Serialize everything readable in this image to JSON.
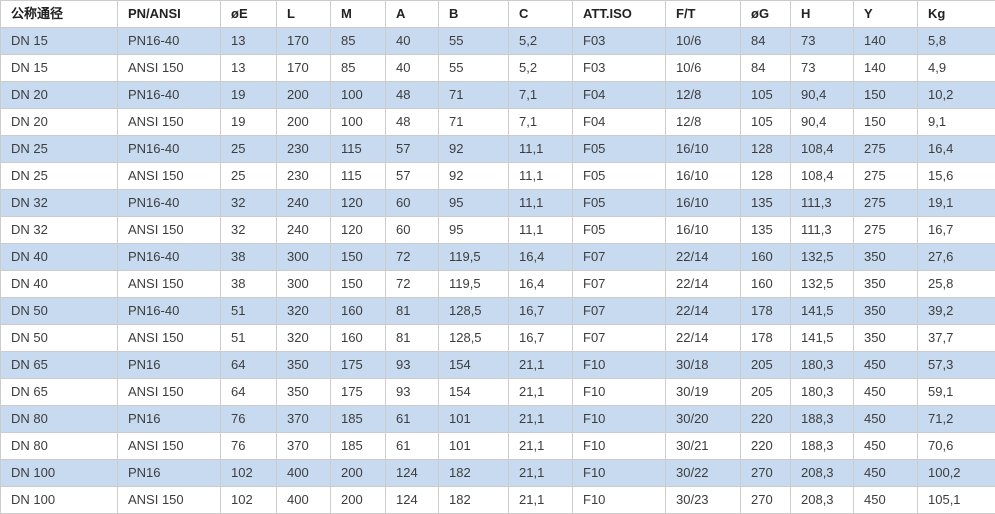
{
  "chart_data": {
    "type": "table",
    "columns": [
      "公称通径",
      "PN/ANSI",
      "øE",
      "L",
      "M",
      "A",
      "B",
      "C",
      "ATT.ISO",
      "F/T",
      "øG",
      "H",
      "Y",
      "Kg"
    ],
    "rows": [
      [
        "DN 15",
        "PN16-40",
        "13",
        "170",
        "85",
        "40",
        "55",
        "5,2",
        "F03",
        "10/6",
        "84",
        "73",
        "140",
        "5,8"
      ],
      [
        "DN 15",
        "ANSI 150",
        "13",
        "170",
        "85",
        "40",
        "55",
        "5,2",
        "F03",
        "10/6",
        "84",
        "73",
        "140",
        "4,9"
      ],
      [
        "DN 20",
        "PN16-40",
        "19",
        "200",
        "100",
        "48",
        "71",
        "7,1",
        "F04",
        "12/8",
        "105",
        "90,4",
        "150",
        "10,2"
      ],
      [
        "DN 20",
        "ANSI 150",
        "19",
        "200",
        "100",
        "48",
        "71",
        "7,1",
        "F04",
        "12/8",
        "105",
        "90,4",
        "150",
        "9,1"
      ],
      [
        "DN 25",
        "PN16-40",
        "25",
        "230",
        "115",
        "57",
        "92",
        "11,1",
        "F05",
        "16/10",
        "128",
        "108,4",
        "275",
        "16,4"
      ],
      [
        "DN 25",
        "ANSI 150",
        "25",
        "230",
        "115",
        "57",
        "92",
        "11,1",
        "F05",
        "16/10",
        "128",
        "108,4",
        "275",
        "15,6"
      ],
      [
        "DN 32",
        "PN16-40",
        "32",
        "240",
        "120",
        "60",
        "95",
        "11,1",
        "F05",
        "16/10",
        "135",
        "111,3",
        "275",
        "19,1"
      ],
      [
        "DN 32",
        "ANSI 150",
        "32",
        "240",
        "120",
        "60",
        "95",
        "11,1",
        "F05",
        "16/10",
        "135",
        "111,3",
        "275",
        "16,7"
      ],
      [
        "DN 40",
        "PN16-40",
        "38",
        "300",
        "150",
        "72",
        "119,5",
        "16,4",
        "F07",
        "22/14",
        "160",
        "132,5",
        "350",
        "27,6"
      ],
      [
        "DN 40",
        "ANSI 150",
        "38",
        "300",
        "150",
        "72",
        "119,5",
        "16,4",
        "F07",
        "22/14",
        "160",
        "132,5",
        "350",
        "25,8"
      ],
      [
        "DN 50",
        "PN16-40",
        "51",
        "320",
        "160",
        "81",
        "128,5",
        "16,7",
        "F07",
        "22/14",
        "178",
        "141,5",
        "350",
        "39,2"
      ],
      [
        "DN 50",
        "ANSI 150",
        "51",
        "320",
        "160",
        "81",
        "128,5",
        "16,7",
        "F07",
        "22/14",
        "178",
        "141,5",
        "350",
        "37,7"
      ],
      [
        "DN 65",
        "PN16",
        "64",
        "350",
        "175",
        "93",
        "154",
        "21,1",
        "F10",
        "30/18",
        "205",
        "180,3",
        "450",
        "57,3"
      ],
      [
        "DN 65",
        "ANSI 150",
        "64",
        "350",
        "175",
        "93",
        "154",
        "21,1",
        "F10",
        "30/19",
        "205",
        "180,3",
        "450",
        "59,1"
      ],
      [
        "DN 80",
        "PN16",
        "76",
        "370",
        "185",
        "61",
        "101",
        "21,1",
        "F10",
        "30/20",
        "220",
        "188,3",
        "450",
        "71,2"
      ],
      [
        "DN 80",
        "ANSI 150",
        "76",
        "370",
        "185",
        "61",
        "101",
        "21,1",
        "F10",
        "30/21",
        "220",
        "188,3",
        "450",
        "70,6"
      ],
      [
        "DN 100",
        "PN16",
        "102",
        "400",
        "200",
        "124",
        "182",
        "21,1",
        "F10",
        "30/22",
        "270",
        "208,3",
        "450",
        "100,2"
      ],
      [
        "DN 100",
        "ANSI 150",
        "102",
        "400",
        "200",
        "124",
        "182",
        "21,1",
        "F10",
        "30/23",
        "270",
        "208,3",
        "450",
        "105,1"
      ]
    ],
    "colors": {
      "row_alt_background": "#c8daf0",
      "row_background": "#ffffff",
      "border": "#cccccc",
      "text": "#3d3d3d",
      "header_text": "#222222"
    },
    "layout_hints": {
      "striping": "odd data rows highlighted blue starting with first data row",
      "grid": true,
      "header_position": "top"
    }
  }
}
